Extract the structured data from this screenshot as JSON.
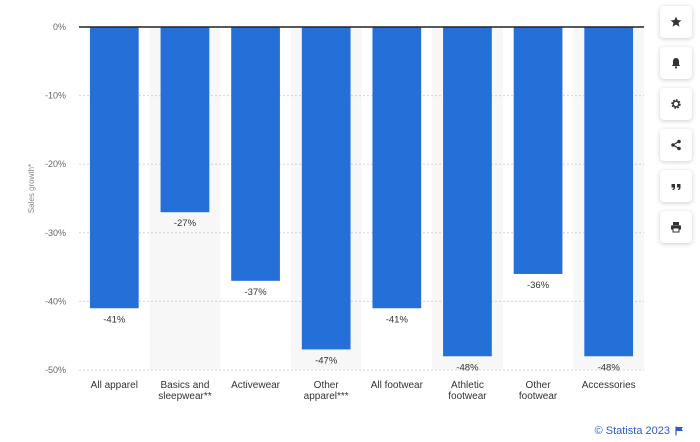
{
  "chart_data": {
    "type": "bar",
    "categories": [
      [
        "All apparel"
      ],
      [
        "Basics and",
        "sleepwear**"
      ],
      [
        "Activewear"
      ],
      [
        "Other",
        "apparel***"
      ],
      [
        "All footwear"
      ],
      [
        "Athletic",
        "footwear"
      ],
      [
        "Other",
        "footwear"
      ],
      [
        "Accessories"
      ]
    ],
    "values": [
      -41,
      -27,
      -37,
      -47,
      -41,
      -48,
      -36,
      -48
    ],
    "data_labels": [
      "-41%",
      "-27%",
      "-37%",
      "-47%",
      "-41%",
      "-48%",
      "-36%",
      "-48%"
    ],
    "ylabel": "Sales growth*",
    "ylim": [
      -50,
      0
    ],
    "yticks": [
      0,
      -10,
      -20,
      -30,
      -40,
      -50
    ],
    "ytick_labels": [
      "0%",
      "-10%",
      "-20%",
      "-30%",
      "-40%",
      "-50%"
    ],
    "grid": true,
    "bar_color": "#2470d8",
    "highlight_band_color": "#f7f7f7"
  },
  "toolbar": [
    {
      "icon": "star-icon",
      "name": "favorite-button"
    },
    {
      "icon": "bell-icon",
      "name": "notification-button"
    },
    {
      "icon": "gear-icon",
      "name": "settings-button"
    },
    {
      "icon": "share-icon",
      "name": "share-button"
    },
    {
      "icon": "quote-icon",
      "name": "cite-button"
    },
    {
      "icon": "print-icon",
      "name": "print-button"
    }
  ],
  "footer": {
    "text": "© Statista 2023",
    "icon": "flag-icon"
  }
}
